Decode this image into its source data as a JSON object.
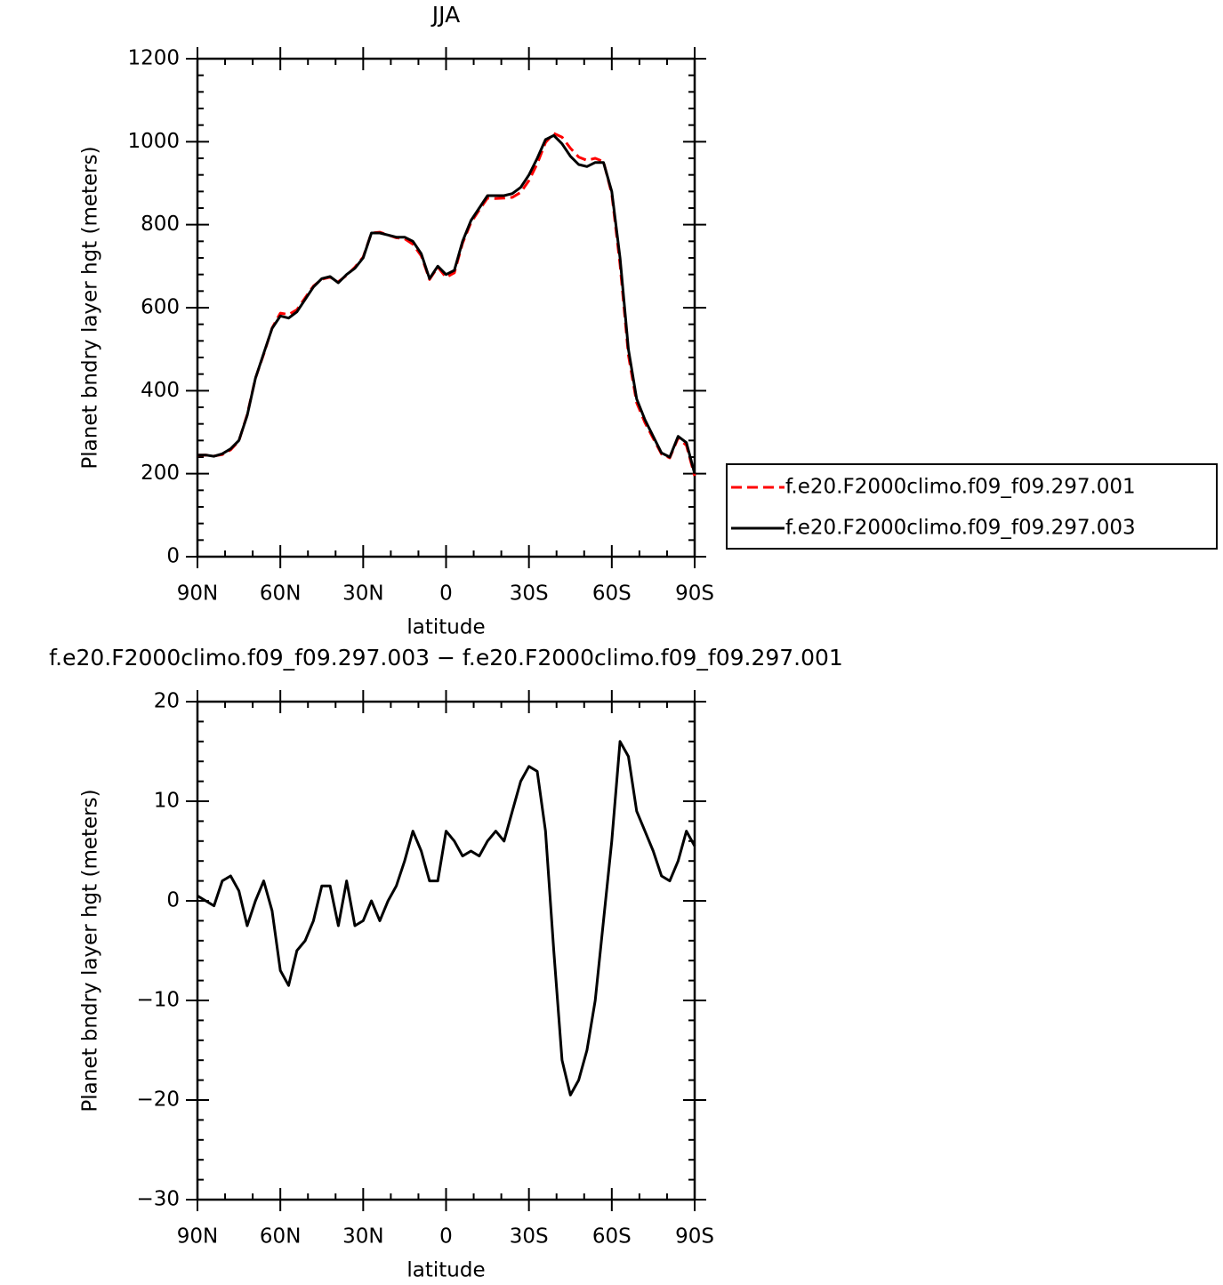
{
  "chart_data": [
    {
      "type": "line",
      "title": "JJA",
      "xlabel": "latitude",
      "ylabel": "Planet bndry layer hgt (meters)",
      "x": [
        90,
        87,
        84,
        81,
        78,
        75,
        72,
        69,
        66,
        63,
        60,
        57,
        54,
        51,
        48,
        45,
        42,
        39,
        36,
        33,
        30,
        27,
        24,
        21,
        18,
        15,
        12,
        9,
        6,
        3,
        0,
        -3,
        -6,
        -9,
        -12,
        -15,
        -18,
        -21,
        -24,
        -27,
        -30,
        -33,
        -36,
        -39,
        -42,
        -45,
        -48,
        -51,
        -54,
        -57,
        -60,
        -63,
        -66,
        -69,
        -72,
        -75,
        -78,
        -81,
        -84,
        -87,
        -90
      ],
      "series": [
        {
          "name": "f.e20.F2000climo.f09_f09.297.001",
          "color": "#ff0000",
          "dashed": true,
          "values": [
            244.5,
            245,
            242.5,
            246,
            257.5,
            279,
            342.5,
            430,
            488,
            551,
            587,
            583.5,
            595,
            624,
            652,
            668.5,
            673.5,
            662.5,
            678,
            697.5,
            722,
            780,
            782,
            775,
            768.5,
            766,
            753,
            725,
            668,
            698,
            673,
            684,
            755.5,
            805,
            835.5,
            864,
            863,
            864,
            866,
            878,
            906.5,
            947,
            998,
            1020,
            1011,
            984.5,
            963,
            955,
            960,
            952,
            874,
            704,
            485.5,
            371,
            323,
            285,
            247.5,
            238,
            286,
            268,
            194.5
          ]
        },
        {
          "name": "f.e20.F2000climo.f09_f09.297.003",
          "color": "#000000",
          "dashed": false,
          "values": [
            245,
            245,
            242,
            248,
            260,
            280,
            340,
            430,
            490,
            550,
            580,
            575,
            590,
            620,
            650,
            670,
            675,
            660,
            680,
            695,
            720,
            780,
            780,
            775,
            770,
            770,
            760,
            730,
            670,
            700,
            680,
            690,
            760,
            810,
            840,
            870,
            870,
            870,
            875,
            890,
            920,
            960,
            1005,
            1015,
            995,
            965,
            945,
            940,
            950,
            950,
            880,
            720,
            500,
            380,
            330,
            290,
            250,
            240,
            290,
            275,
            200
          ]
        }
      ],
      "xlim": [
        90,
        -90
      ],
      "xticks": [
        {
          "value": 90,
          "label": "90N"
        },
        {
          "value": 60,
          "label": "60N"
        },
        {
          "value": 30,
          "label": "30N"
        },
        0,
        {
          "value": -30,
          "label": "30S"
        },
        {
          "value": -60,
          "label": "60S"
        },
        {
          "value": -90,
          "label": "90S"
        }
      ],
      "ylim": [
        0,
        1200
      ],
      "yticks": [
        0,
        200,
        400,
        600,
        800,
        1000,
        1200
      ],
      "legend": "right"
    },
    {
      "type": "line",
      "title": "f.e20.F2000climo.f09_f09.297.003 − f.e20.F2000climo.f09_f09.297.001",
      "xlabel": "latitude",
      "ylabel": "Planet bndry layer hgt (meters)",
      "x": [
        90,
        87,
        84,
        81,
        78,
        75,
        72,
        69,
        66,
        63,
        60,
        57,
        54,
        51,
        48,
        45,
        42,
        39,
        36,
        33,
        30,
        27,
        24,
        21,
        18,
        15,
        12,
        9,
        6,
        3,
        0,
        -3,
        -6,
        -9,
        -12,
        -15,
        -18,
        -21,
        -24,
        -27,
        -30,
        -33,
        -36,
        -39,
        -42,
        -45,
        -48,
        -51,
        -54,
        -57,
        -60,
        -63,
        -66,
        -69,
        -72,
        -75,
        -78,
        -81,
        -84,
        -87,
        -90
      ],
      "series": [
        {
          "color": "#000000",
          "dashed": false,
          "values": [
            0.5,
            0,
            -0.5,
            2,
            2.5,
            1,
            -2.5,
            0,
            2,
            -1,
            -7,
            -8.5,
            -5,
            -4,
            -2,
            1.5,
            1.5,
            -2.5,
            2,
            -2.5,
            -2,
            0,
            -2,
            0,
            1.5,
            4,
            7,
            5,
            2,
            2,
            7,
            6,
            4.5,
            5,
            4.5,
            6,
            7,
            6,
            9,
            12,
            13.5,
            13,
            7,
            -5,
            -16,
            -19.5,
            -18,
            -15,
            -10,
            -2,
            6,
            16,
            14.5,
            9,
            7,
            5,
            2.5,
            2,
            4,
            7,
            5.5
          ]
        }
      ],
      "xlim": [
        90,
        -90
      ],
      "xticks": [
        {
          "value": 90,
          "label": "90N"
        },
        {
          "value": 60,
          "label": "60N"
        },
        {
          "value": 30,
          "label": "30N"
        },
        0,
        {
          "value": -30,
          "label": "30S"
        },
        {
          "value": -60,
          "label": "60S"
        },
        {
          "value": -90,
          "label": "90S"
        }
      ],
      "ylim": [
        -30,
        20
      ],
      "yticks": [
        {
          "value": -30,
          "label": "−30"
        },
        {
          "value": -20,
          "label": "−20"
        },
        {
          "value": -10,
          "label": "−10"
        },
        0,
        10,
        20
      ]
    }
  ]
}
